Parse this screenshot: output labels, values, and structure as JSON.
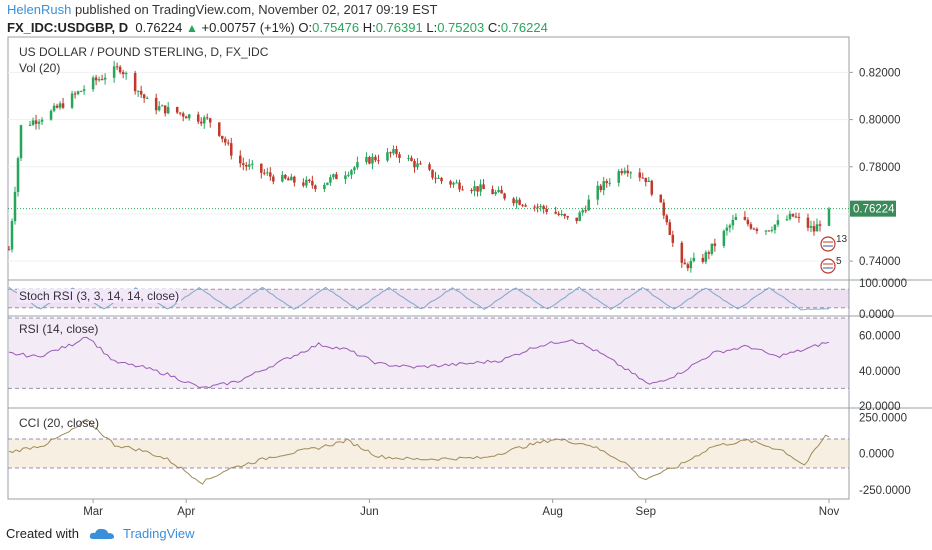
{
  "header": {
    "author": "HelenRush",
    "published_text": "published on TradingView.com, November 02, 2017 09:19 EST",
    "symbol": "FX_IDC:USDGBP, D",
    "last": "0.76224",
    "change": "+0.00757 (+1%)",
    "open_label": "O:",
    "open": "0.75476",
    "high_label": "H:",
    "high": "0.76391",
    "low_label": "L:",
    "low": "0.75203",
    "close_label": "C:",
    "close": "0.76224"
  },
  "main_pane": {
    "title": "US DOLLAR / POUND STERLING, D, FX_IDC",
    "vol_label": "Vol (20)",
    "price_ticks": [
      "0.82000",
      "0.80000",
      "0.78000",
      "0.74000"
    ],
    "last_price_label": "0.76224",
    "event_badges": [
      "13",
      "5"
    ]
  },
  "stoch_pane": {
    "title": "Stoch RSI (3, 3, 14, 14, close)",
    "ticks": [
      "100.0000",
      "0.0000"
    ]
  },
  "rsi_pane": {
    "title": "RSI (14, close)",
    "ticks": [
      "60.0000",
      "40.0000",
      "20.0000"
    ]
  },
  "cci_pane": {
    "title": "CCI (20, close)",
    "ticks": [
      "250.0000",
      "0.0000",
      "-250.0000"
    ]
  },
  "x_axis": {
    "labels": [
      "Mar",
      "Apr",
      "Jun",
      "Aug",
      "Sep",
      "Nov"
    ]
  },
  "footer": {
    "created_with": "Created with",
    "brand": "TradingView"
  },
  "colors": {
    "up": "#26a65b",
    "down": "#c0392b",
    "indicator": "#9b59b6",
    "cci": "#a08a5a"
  },
  "chart_data": {
    "type": "candlestick",
    "symbol": "FX_IDC:USDGBP",
    "interval": "D",
    "y_axis_range": [
      0.732,
      0.835
    ],
    "anchors": [
      {
        "x": "Feb 01",
        "close": 0.745
      },
      {
        "x": "Feb 05",
        "close": 0.797
      },
      {
        "x": "Feb 15",
        "close": 0.803
      },
      {
        "x": "Mar 01",
        "close": 0.816
      },
      {
        "x": "Mar 10",
        "close": 0.822
      },
      {
        "x": "Mar 20",
        "close": 0.806
      },
      {
        "x": "Apr 01",
        "close": 0.802
      },
      {
        "x": "Apr 10",
        "close": 0.799
      },
      {
        "x": "Apr 18",
        "close": 0.782
      },
      {
        "x": "May 01",
        "close": 0.775
      },
      {
        "x": "May 15",
        "close": 0.772
      },
      {
        "x": "Jun 01",
        "close": 0.783
      },
      {
        "x": "Jun 10",
        "close": 0.786
      },
      {
        "x": "Jun 25",
        "close": 0.774
      },
      {
        "x": "Jul 10",
        "close": 0.77
      },
      {
        "x": "Aug 01",
        "close": 0.761
      },
      {
        "x": "Aug 08",
        "close": 0.756
      },
      {
        "x": "Aug 15",
        "close": 0.769
      },
      {
        "x": "Aug 25",
        "close": 0.78
      },
      {
        "x": "Sep 01",
        "close": 0.775
      },
      {
        "x": "Sep 08",
        "close": 0.758
      },
      {
        "x": "Sep 12",
        "close": 0.737
      },
      {
        "x": "Sep 20",
        "close": 0.741
      },
      {
        "x": "Oct 01",
        "close": 0.758
      },
      {
        "x": "Oct 10",
        "close": 0.753
      },
      {
        "x": "Oct 20",
        "close": 0.759
      },
      {
        "x": "Oct 27",
        "close": 0.753
      },
      {
        "x": "Nov 01",
        "close": 0.762
      }
    ],
    "last_close": 0.76224,
    "indicators": {
      "stoch_rsi": {
        "range": [
          0,
          100
        ],
        "bands": [
          20,
          80
        ]
      },
      "rsi": {
        "range": [
          20,
          70
        ],
        "bands": [
          30,
          70
        ],
        "anchors": [
          [
            0,
            50
          ],
          [
            8,
            48
          ],
          [
            18,
            55
          ],
          [
            22,
            60
          ],
          [
            30,
            45
          ],
          [
            38,
            42
          ],
          [
            45,
            38
          ],
          [
            55,
            30
          ],
          [
            65,
            34
          ],
          [
            78,
            46
          ],
          [
            88,
            55
          ],
          [
            96,
            52
          ],
          [
            105,
            44
          ],
          [
            115,
            42
          ],
          [
            130,
            44
          ],
          [
            140,
            46
          ],
          [
            150,
            54
          ],
          [
            160,
            58
          ],
          [
            168,
            50
          ],
          [
            176,
            40
          ],
          [
            182,
            32
          ],
          [
            190,
            38
          ],
          [
            200,
            50
          ],
          [
            210,
            54
          ],
          [
            218,
            48
          ],
          [
            226,
            52
          ],
          [
            232,
            56
          ]
        ]
      },
      "cci": {
        "range": [
          -300,
          300
        ],
        "bands": [
          -100,
          100
        ],
        "anchors": [
          [
            0,
            10
          ],
          [
            10,
            60
          ],
          [
            18,
            160
          ],
          [
            22,
            230
          ],
          [
            30,
            60
          ],
          [
            38,
            20
          ],
          [
            45,
            -40
          ],
          [
            55,
            -200
          ],
          [
            62,
            -110
          ],
          [
            75,
            -20
          ],
          [
            88,
            40
          ],
          [
            96,
            90
          ],
          [
            105,
            -20
          ],
          [
            115,
            -40
          ],
          [
            135,
            -30
          ],
          [
            145,
            40
          ],
          [
            155,
            100
          ],
          [
            165,
            60
          ],
          [
            175,
            -60
          ],
          [
            180,
            -180
          ],
          [
            190,
            -90
          ],
          [
            200,
            50
          ],
          [
            210,
            90
          ],
          [
            220,
            20
          ],
          [
            226,
            -80
          ],
          [
            232,
            120
          ]
        ]
      }
    }
  }
}
